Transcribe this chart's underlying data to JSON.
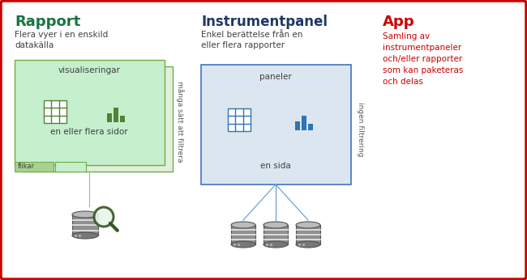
{
  "bg_color": "#ffffff",
  "border_color": "#cc0000",
  "border_lw": 2.5,
  "rapport_title": "Rapport",
  "rapport_title_color": "#1a7340",
  "rapport_subtitle": "Flera vyer i en enskild\ndatakälla",
  "rapport_subtitle_color": "#404040",
  "instrument_title": "Instrumentpanel",
  "instrument_title_color": "#1f3864",
  "instrument_subtitle": "Enkel berättelse från en\neller flera rapporter",
  "instrument_subtitle_color": "#404040",
  "app_title": "App",
  "app_title_color": "#cc0000",
  "app_body": "Samling av\ninstrumentpaneler\noch/eller rapporter\nsom kan paketeras\noch delas",
  "app_body_color": "#cc0000",
  "rapport_box_color": "#c6efce",
  "rapport_box_border": "#70ad47",
  "rapport_box2_color": "#e2efda",
  "rapport_box2_border": "#70ad47",
  "instrument_box_color": "#dce6f1",
  "instrument_box_border": "#4472c4",
  "label_visualiseringar": "visualiseringar",
  "label_en_eller_flera_sidor": "en eller flera sidor",
  "label_flikar": "flikar",
  "label_paneler": "paneler",
  "label_en_sida": "en sida",
  "rotated_text_left": "många sätt att filtrera",
  "rotated_text_right": "ingen filtrering",
  "rotated_text_color": "#595959",
  "bar_color_green": "#548235",
  "bar_color_blue": "#2e75b6",
  "magnify_color": "#375623",
  "db_color": "#909090",
  "line_color_green": "#909090",
  "line_color_blue": "#5b9bd5"
}
